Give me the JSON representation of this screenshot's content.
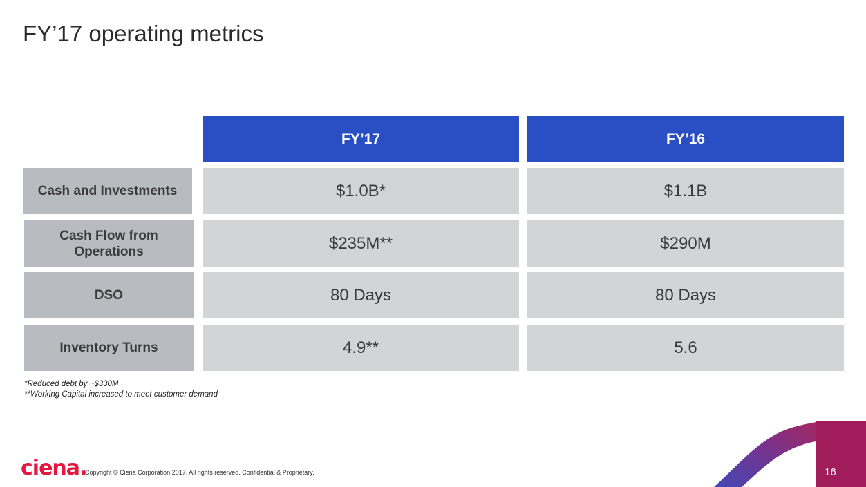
{
  "slide": {
    "title": "FY’17 operating metrics",
    "page_number": "16"
  },
  "table": {
    "columns": [
      "FY’17",
      "FY’16"
    ],
    "rows": [
      {
        "label": "Cash and Investments",
        "values": [
          "$1.0B*",
          "$1.1B"
        ]
      },
      {
        "label": "Cash Flow from Operations",
        "values": [
          "$235M**",
          "$290M"
        ]
      },
      {
        "label": "DSO",
        "values": [
          "80 Days",
          "80 Days"
        ]
      },
      {
        "label": "Inventory Turns",
        "values": [
          "4.9**",
          "5.6"
        ]
      }
    ]
  },
  "footnotes": [
    "*Reduced debt by ~$330M",
    "**Working Capital increased to meet customer demand"
  ],
  "footer": {
    "logo_text": "ciena.",
    "copyright": "Copyright © Ciena Corporation 2017. All rights reserved. Confidential & Proprietary."
  },
  "colors": {
    "header_blue": "#2a4fc4",
    "label_gray": "#b8bcc0",
    "value_gray": "#d2d4d6",
    "brand_red": "#e4173f",
    "accent_purple": "#5b2a8c"
  }
}
